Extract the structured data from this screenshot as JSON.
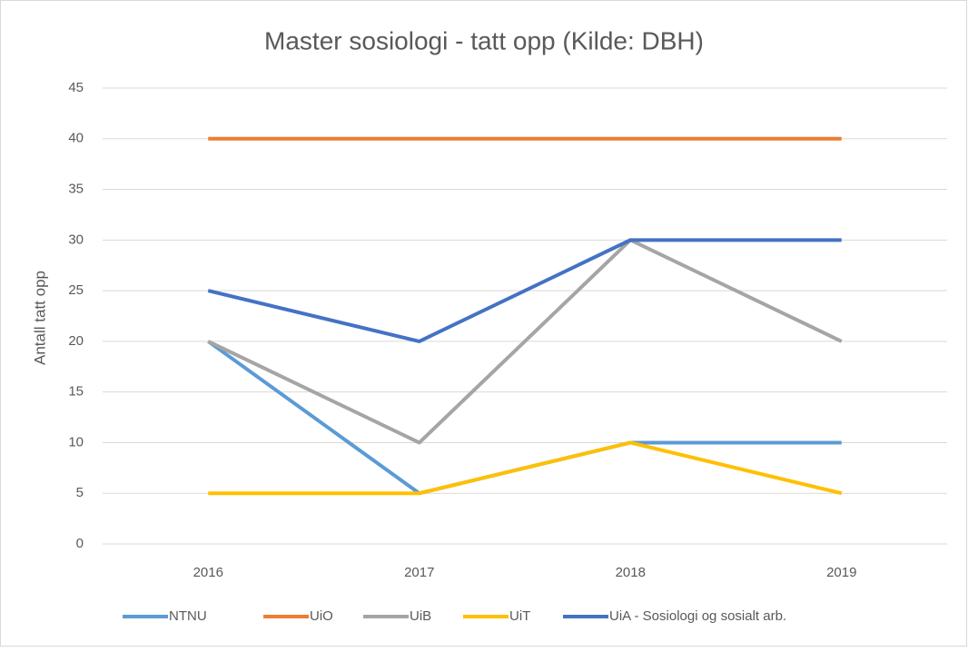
{
  "chart_data": {
    "type": "line",
    "title": "Master sosiologi - tatt opp (Kilde: DBH)",
    "y_label": "Antall tatt opp",
    "categories": [
      "2016",
      "2017",
      "2018",
      "2019"
    ],
    "series": [
      {
        "name": "NTNU",
        "color": "#5b9bd5",
        "values": [
          20,
          5,
          10,
          10
        ]
      },
      {
        "name": "UiO",
        "color": "#ed7d31",
        "values": [
          40,
          40,
          40,
          40
        ]
      },
      {
        "name": "UiB",
        "color": "#a5a5a5",
        "values": [
          20,
          10,
          30,
          20
        ]
      },
      {
        "name": "UiT",
        "color": "#ffc000",
        "values": [
          5,
          5,
          10,
          5
        ]
      },
      {
        "name": "UiA - Sosiologi og sosialt arb.",
        "color": "#4472c4",
        "values": [
          25,
          20,
          30,
          30
        ]
      }
    ],
    "ylim": [
      0,
      45
    ],
    "yticks": [
      0,
      5,
      10,
      15,
      20,
      25,
      30,
      35,
      40,
      45
    ],
    "grid": true,
    "legend": "bottom"
  }
}
